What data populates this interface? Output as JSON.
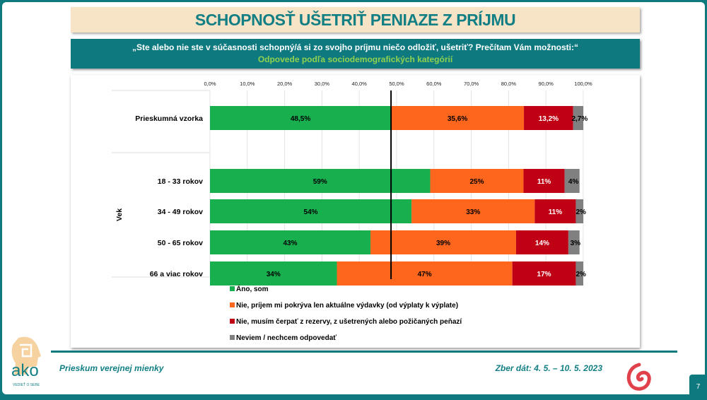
{
  "title": "SCHOPNOSŤ UŠETRIŤ PENIAZE Z PRÍJMU",
  "question": "„Ste alebo nie ste v súčasnosti schopný/á si zo svojho príjmu niečo odložiť, ušetriť? Prečítam Vám možnosti:“",
  "subtitle": "Odpovede podľa sociodemografických kategórií",
  "chart_data": {
    "type": "bar",
    "orientation": "horizontal",
    "stacked": "100%",
    "xlim": [
      0,
      100
    ],
    "x_ticks": [
      "0,0%",
      "10,0%",
      "20,0%",
      "30,0%",
      "40,0%",
      "50,0%",
      "60,0%",
      "70,0%",
      "80,0%",
      "90,0%",
      "100,0%"
    ],
    "group_label": "Vek",
    "categories": [
      "Prieskumná vzorka",
      "18 - 33 rokov",
      "34 - 49 rokov",
      "50 - 65 rokov",
      "66 a viac rokov"
    ],
    "series": [
      {
        "name": "Áno, som",
        "color": "#18b04f",
        "values": [
          48.5,
          59,
          54,
          43,
          34
        ],
        "labels": [
          "48,5%",
          "59%",
          "54%",
          "43%",
          "34%"
        ]
      },
      {
        "name": "Nie, príjem mi pokrýva len aktuálne výdavky (od výplaty k výplate)",
        "color": "#fd661c",
        "values": [
          35.6,
          25,
          33,
          39,
          47
        ],
        "labels": [
          "35,6%",
          "25%",
          "33%",
          "39%",
          "47%"
        ]
      },
      {
        "name": "Nie, musím čerpať z rezervy, z ušetrených alebo požičaných peňazí",
        "color": "#c00014",
        "values": [
          13.2,
          11,
          11,
          14,
          17
        ],
        "labels": [
          "13,2%",
          "11%",
          "11%",
          "14%",
          "17%"
        ]
      },
      {
        "name": "Neviem / nechcem odpovedať",
        "color": "#808080",
        "values": [
          2.7,
          4,
          2,
          3,
          2
        ],
        "labels": [
          "2,7%",
          "4%",
          "2%",
          "3%",
          "2%"
        ]
      }
    ],
    "reference_line": 48.5,
    "legend_position": "bottom"
  },
  "footer": {
    "left": "Prieskum verejnej mienky",
    "right": "Zber dát: 4. 5. – 10. 5. 2023",
    "page": "7",
    "logo_text": "ako",
    "logo_tagline": "VEDIEŤ O SEBE"
  }
}
